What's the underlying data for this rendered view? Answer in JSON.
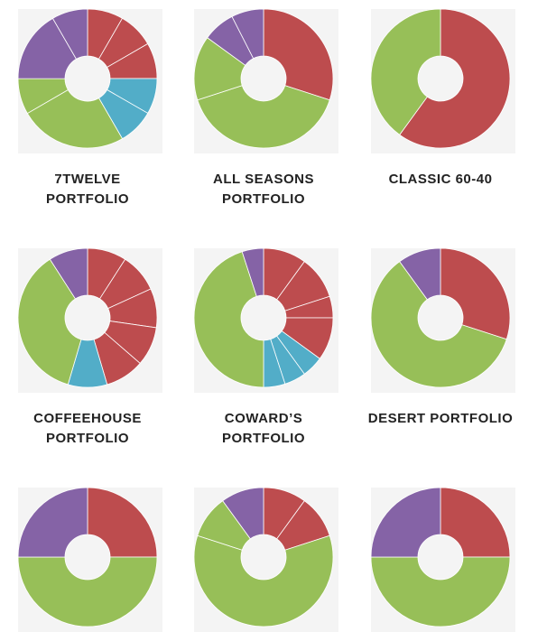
{
  "colors": {
    "red": "#bd4c4e",
    "green": "#97bf58",
    "teal": "#52adc8",
    "purple": "#8563a6",
    "separator": "#ffffff",
    "label": "#222222"
  },
  "chart_data": [
    {
      "type": "pie",
      "donut": true,
      "label_lines": [
        "7TWELVE",
        "PORTFOLIO"
      ],
      "slices": [
        {
          "color": "red",
          "value": 8.33
        },
        {
          "color": "red",
          "value": 8.33
        },
        {
          "color": "red",
          "value": 8.33
        },
        {
          "color": "teal",
          "value": 8.33
        },
        {
          "color": "teal",
          "value": 8.33
        },
        {
          "color": "green",
          "value": 25.0
        },
        {
          "color": "green",
          "value": 8.33
        },
        {
          "color": "purple",
          "value": 16.67
        },
        {
          "color": "purple",
          "value": 8.35
        }
      ]
    },
    {
      "type": "pie",
      "donut": true,
      "label_lines": [
        "ALL SEASONS",
        "PORTFOLIO"
      ],
      "slices": [
        {
          "color": "red",
          "value": 30
        },
        {
          "color": "green",
          "value": 40
        },
        {
          "color": "green",
          "value": 15
        },
        {
          "color": "purple",
          "value": 7.5
        },
        {
          "color": "purple",
          "value": 7.5
        }
      ]
    },
    {
      "type": "pie",
      "donut": true,
      "label_lines": [
        "CLASSIC 60-40"
      ],
      "slices": [
        {
          "color": "red",
          "value": 60
        },
        {
          "color": "green",
          "value": 40
        }
      ]
    },
    {
      "type": "pie",
      "donut": true,
      "label_lines": [
        "COFFEEHOUSE",
        "PORTFOLIO"
      ],
      "slices": [
        {
          "color": "red",
          "value": 10
        },
        {
          "color": "red",
          "value": 10
        },
        {
          "color": "red",
          "value": 10
        },
        {
          "color": "red",
          "value": 10
        },
        {
          "color": "red",
          "value": 10
        },
        {
          "color": "teal",
          "value": 10
        },
        {
          "color": "green",
          "value": 40
        },
        {
          "color": "purple",
          "value": 10
        }
      ]
    },
    {
      "type": "pie",
      "donut": true,
      "label_lines": [
        "COWARD’S",
        "PORTFOLIO"
      ],
      "slices": [
        {
          "color": "red",
          "value": 10
        },
        {
          "color": "red",
          "value": 10
        },
        {
          "color": "red",
          "value": 5
        },
        {
          "color": "red",
          "value": 10
        },
        {
          "color": "teal",
          "value": 5
        },
        {
          "color": "teal",
          "value": 5
        },
        {
          "color": "teal",
          "value": 5
        },
        {
          "color": "green",
          "value": 45
        },
        {
          "color": "purple",
          "value": 5
        }
      ]
    },
    {
      "type": "pie",
      "donut": true,
      "label_lines": [
        "DESERT PORTFOLIO"
      ],
      "slices": [
        {
          "color": "red",
          "value": 30
        },
        {
          "color": "green",
          "value": 60
        },
        {
          "color": "purple",
          "value": 10
        }
      ]
    },
    {
      "type": "pie",
      "donut": true,
      "label_lines": [],
      "slices": [
        {
          "color": "red",
          "value": 25
        },
        {
          "color": "green",
          "value": 50
        },
        {
          "color": "purple",
          "value": 25
        }
      ]
    },
    {
      "type": "pie",
      "donut": true,
      "label_lines": [],
      "slices": [
        {
          "color": "red",
          "value": 10
        },
        {
          "color": "red",
          "value": 10
        },
        {
          "color": "green",
          "value": 60
        },
        {
          "color": "green",
          "value": 10
        },
        {
          "color": "purple",
          "value": 10
        }
      ]
    },
    {
      "type": "pie",
      "donut": true,
      "label_lines": [],
      "slices": [
        {
          "color": "red",
          "value": 25
        },
        {
          "color": "green",
          "value": 50
        },
        {
          "color": "purple",
          "value": 25
        }
      ]
    }
  ]
}
